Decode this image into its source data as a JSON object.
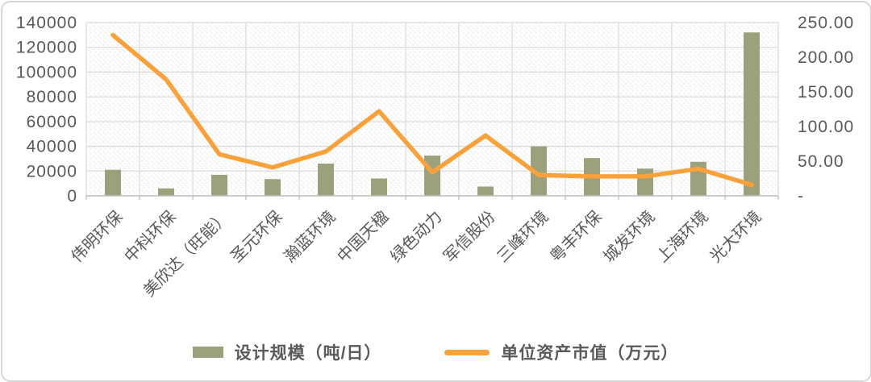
{
  "chart_data": {
    "type": "combo-bar-line",
    "title": "",
    "categories": [
      "伟明环保",
      "中科环保",
      "美欣达（旺能）",
      "圣元环保",
      "瀚蓝环境",
      "中国天楹",
      "绿色动力",
      "军信股份",
      "三峰环境",
      "粤丰环保",
      "城发环境",
      "上海环境",
      "光大环境"
    ],
    "series": [
      {
        "name": "设计规模（吨/日）",
        "type": "bar",
        "axis": "left",
        "color": "#9CA17B",
        "values": [
          21000,
          6000,
          17000,
          13500,
          26000,
          14000,
          32500,
          7500,
          40000,
          30500,
          22000,
          27500,
          132000
        ]
      },
      {
        "name": "单位资产市值（万元）",
        "type": "line",
        "axis": "right",
        "color": "#F9A13B",
        "values": [
          232,
          168,
          60,
          41,
          64,
          122,
          34,
          87,
          30,
          28,
          28,
          39,
          16
        ]
      }
    ],
    "left_axis": {
      "min": 0,
      "max": 140000,
      "tick_step": 20000,
      "tick_labels": [
        "0",
        "20000",
        "40000",
        "60000",
        "80000",
        "100000",
        "120000",
        "140000"
      ]
    },
    "right_axis": {
      "min": 0,
      "max": 250,
      "tick_step": 50,
      "tick_labels": [
        "-",
        "50.00",
        "100.00",
        "150.00",
        "200.00",
        "250.00"
      ]
    },
    "legend_position": "bottom",
    "grid": true,
    "plot_background": "diagonal-hatch",
    "x_label_rotation_deg": 45
  },
  "legend": {
    "items": [
      {
        "label": "设计规模（吨/日）",
        "swatch": "bar"
      },
      {
        "label": "单位资产市值（万元）",
        "swatch": "line"
      }
    ]
  },
  "colors": {
    "bar": "#9CA17B",
    "line": "#F9A13B",
    "axis_text": "#595959",
    "gridline": "#DBDBDB",
    "axis_line": "#BFBFBF",
    "hatch": "#E7E7E7",
    "card_border": "#D6D6D6",
    "background": "#FFFFFF"
  }
}
